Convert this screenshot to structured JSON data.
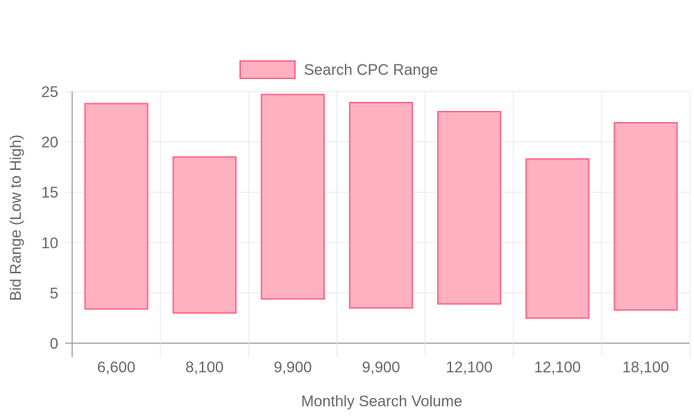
{
  "chart_data": {
    "type": "bar",
    "subtype": "floating-range",
    "legend": {
      "position": "top",
      "label": "Search CPC Range"
    },
    "xlabel": "Monthly Search Volume",
    "ylabel": "Bid Range (Low to High)",
    "categories": [
      "6,600",
      "8,100",
      "9,900",
      "9,900",
      "12,100",
      "12,100",
      "18,100"
    ],
    "series": [
      {
        "name": "Search CPC Range",
        "ranges": [
          [
            3.4,
            23.8
          ],
          [
            3.0,
            18.5
          ],
          [
            4.4,
            24.7
          ],
          [
            3.5,
            23.9
          ],
          [
            3.9,
            23.0
          ],
          [
            2.5,
            18.3
          ],
          [
            3.3,
            21.9
          ]
        ]
      }
    ],
    "ylim": [
      0,
      25
    ],
    "yticks": [
      "0",
      "5",
      "10",
      "15",
      "20",
      "25"
    ],
    "grid": true,
    "colors": {
      "bar_fill": "#ffb1c1",
      "bar_stroke": "#ff6384",
      "grid": "#e5e5e5",
      "axis": "#999999",
      "text": "#666666"
    }
  }
}
